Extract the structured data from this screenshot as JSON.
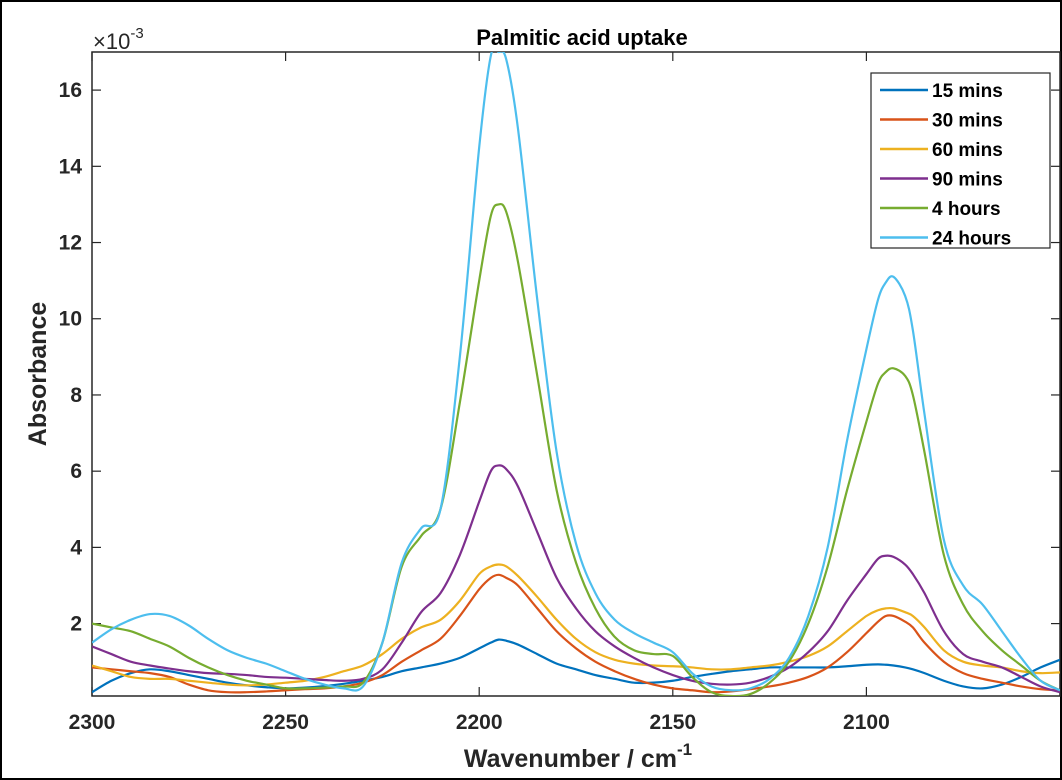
{
  "chart_data": {
    "type": "line",
    "title": "Palmitic acid uptake",
    "xlabel_main": "Wavenumber / cm",
    "xlabel_sup": "-1",
    "ylabel": "Absorbance",
    "y_exponent_prefix": "×10",
    "y_exponent_power": "-3",
    "xlim": [
      2300,
      2050
    ],
    "x_reversed": true,
    "ylim": [
      0.1,
      17
    ],
    "x_ticks": [
      2300,
      2250,
      2200,
      2150,
      2100
    ],
    "y_ticks": [
      2,
      4,
      6,
      8,
      10,
      12,
      14,
      16
    ],
    "grid": false,
    "legend_position": "top-right",
    "x": [
      2300,
      2295,
      2290,
      2285,
      2280,
      2275,
      2270,
      2265,
      2260,
      2255,
      2250,
      2245,
      2240,
      2235,
      2230,
      2225,
      2220,
      2215,
      2210,
      2205,
      2200,
      2197,
      2195,
      2193,
      2190,
      2185,
      2180,
      2175,
      2170,
      2165,
      2160,
      2155,
      2150,
      2145,
      2140,
      2135,
      2130,
      2125,
      2120,
      2115,
      2110,
      2105,
      2100,
      2097,
      2095,
      2093,
      2090,
      2088,
      2085,
      2080,
      2075,
      2070,
      2065,
      2060,
      2055,
      2050
    ],
    "series": [
      {
        "name": "15 mins",
        "color": "#0072BD",
        "values": [
          0.2,
          0.5,
          0.7,
          0.8,
          0.75,
          0.65,
          0.55,
          0.45,
          0.38,
          0.33,
          0.3,
          0.32,
          0.36,
          0.42,
          0.5,
          0.6,
          0.75,
          0.85,
          0.95,
          1.1,
          1.35,
          1.5,
          1.58,
          1.55,
          1.45,
          1.2,
          0.95,
          0.8,
          0.65,
          0.55,
          0.45,
          0.45,
          0.5,
          0.6,
          0.68,
          0.75,
          0.8,
          0.85,
          0.85,
          0.85,
          0.85,
          0.88,
          0.92,
          0.93,
          0.92,
          0.9,
          0.85,
          0.8,
          0.7,
          0.5,
          0.35,
          0.3,
          0.4,
          0.6,
          0.85,
          1.05
        ]
      },
      {
        "name": "30 mins",
        "color": "#D95319",
        "values": [
          0.85,
          0.8,
          0.75,
          0.7,
          0.6,
          0.4,
          0.25,
          0.2,
          0.2,
          0.22,
          0.25,
          0.28,
          0.3,
          0.35,
          0.45,
          0.65,
          1.0,
          1.3,
          1.6,
          2.2,
          2.9,
          3.2,
          3.28,
          3.2,
          3.0,
          2.4,
          1.8,
          1.35,
          1.0,
          0.75,
          0.55,
          0.4,
          0.3,
          0.25,
          0.2,
          0.22,
          0.28,
          0.35,
          0.45,
          0.6,
          0.85,
          1.25,
          1.75,
          2.05,
          2.2,
          2.2,
          2.05,
          1.9,
          1.5,
          1.0,
          0.7,
          0.55,
          0.45,
          0.35,
          0.28,
          0.25
        ]
      },
      {
        "name": "60 mins",
        "color": "#EDB120",
        "values": [
          0.9,
          0.75,
          0.6,
          0.55,
          0.55,
          0.5,
          0.45,
          0.4,
          0.38,
          0.4,
          0.45,
          0.5,
          0.6,
          0.75,
          0.9,
          1.2,
          1.6,
          1.9,
          2.1,
          2.6,
          3.3,
          3.5,
          3.55,
          3.5,
          3.25,
          2.7,
          2.1,
          1.6,
          1.25,
          1.05,
          0.95,
          0.9,
          0.88,
          0.85,
          0.8,
          0.8,
          0.85,
          0.9,
          1.0,
          1.15,
          1.4,
          1.8,
          2.2,
          2.35,
          2.4,
          2.4,
          2.3,
          2.2,
          1.9,
          1.3,
          1.0,
          0.9,
          0.85,
          0.75,
          0.7,
          0.72
        ]
      },
      {
        "name": "90 mins",
        "color": "#7E2F8E",
        "values": [
          1.4,
          1.2,
          1.0,
          0.9,
          0.82,
          0.75,
          0.7,
          0.68,
          0.65,
          0.6,
          0.58,
          0.55,
          0.52,
          0.5,
          0.55,
          0.8,
          1.5,
          2.3,
          2.8,
          3.8,
          5.2,
          6.0,
          6.15,
          6.05,
          5.6,
          4.4,
          3.2,
          2.4,
          1.8,
          1.4,
          1.1,
          0.85,
          0.65,
          0.5,
          0.42,
          0.4,
          0.45,
          0.6,
          0.85,
          1.25,
          1.8,
          2.6,
          3.3,
          3.7,
          3.78,
          3.75,
          3.55,
          3.3,
          2.8,
          1.8,
          1.2,
          1.0,
          0.85,
          0.6,
          0.35,
          0.2
        ]
      },
      {
        "name": "4 hours",
        "color": "#77AC30",
        "values": [
          2.0,
          1.9,
          1.8,
          1.6,
          1.4,
          1.1,
          0.85,
          0.65,
          0.5,
          0.4,
          0.3,
          0.3,
          0.32,
          0.35,
          0.45,
          1.5,
          3.5,
          4.3,
          5.0,
          7.8,
          11.0,
          12.7,
          13.0,
          12.8,
          11.5,
          8.5,
          5.5,
          3.6,
          2.4,
          1.65,
          1.3,
          1.2,
          1.15,
          0.6,
          0.2,
          0.1,
          0.15,
          0.45,
          1.0,
          2.0,
          3.5,
          5.5,
          7.3,
          8.3,
          8.6,
          8.7,
          8.5,
          8.0,
          6.5,
          3.8,
          2.5,
          1.8,
          1.3,
          0.9,
          0.5,
          0.25
        ]
      },
      {
        "name": "24 hours",
        "color": "#4DBEEE",
        "values": [
          1.5,
          1.85,
          2.1,
          2.25,
          2.2,
          1.95,
          1.6,
          1.3,
          1.1,
          0.95,
          0.75,
          0.55,
          0.4,
          0.3,
          0.35,
          1.5,
          3.6,
          4.5,
          5.0,
          9.0,
          14.5,
          16.9,
          17.0,
          16.8,
          15.0,
          10.5,
          6.5,
          4.1,
          2.8,
          2.1,
          1.75,
          1.5,
          1.25,
          0.7,
          0.35,
          0.25,
          0.3,
          0.55,
          1.1,
          2.2,
          4.0,
          6.8,
          9.2,
          10.5,
          10.95,
          11.1,
          10.6,
          9.7,
          7.5,
          4.2,
          3.0,
          2.5,
          1.8,
          1.1,
          0.5,
          0.25
        ]
      }
    ]
  }
}
